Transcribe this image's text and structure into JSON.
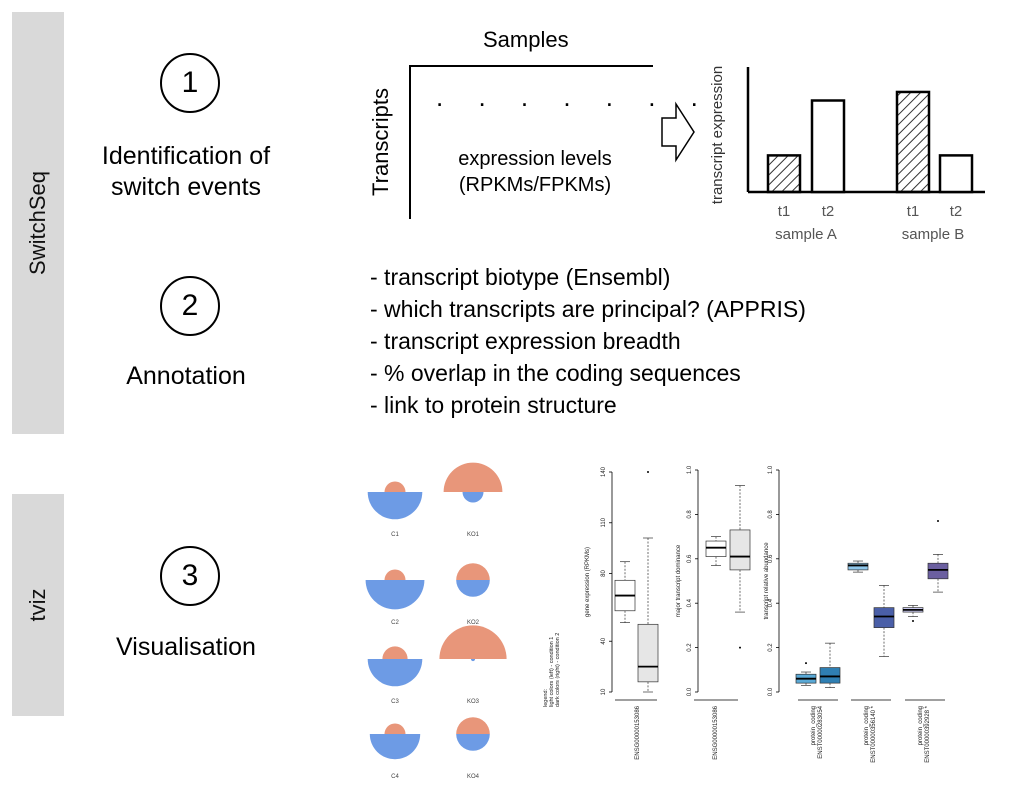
{
  "sidebar": {
    "top_label": "SwitchSeq",
    "bottom_label": "tviz"
  },
  "steps": [
    {
      "number": "1",
      "title_line1": "Identification of",
      "title_line2": "switch events"
    },
    {
      "number": "2",
      "title": "Annotation"
    },
    {
      "number": "3",
      "title": "Visualisation"
    }
  ],
  "matrix": {
    "col_label": "Samples",
    "row_label": "Transcripts",
    "dots": ". . . . . . . ",
    "body_line1": "expression levels",
    "body_line2": "(RPKMs/FPKMs)"
  },
  "annotation_items": [
    "- transcript biotype (Ensembl)",
    "- which transcripts are principal? (APPRIS)",
    "- transcript expression breadth",
    "- % overlap in the coding sequences",
    "- link to protein structure"
  ],
  "colors": {
    "sidebar": "#d9d9d9",
    "circle_orange": "#e8967a",
    "circle_blue": "#6d9be5",
    "box_light_blue": "#5aa9d6",
    "box_dark_blue": "#4a5fa8",
    "box_purple": "#6b5fa0"
  },
  "chart_data": [
    {
      "type": "bar",
      "ylabel": "transcript expression",
      "categories": [
        "t1",
        "t2",
        "t1",
        "t2"
      ],
      "groups": [
        "sample A",
        "sample B"
      ],
      "series": [
        {
          "values": [
            0.3,
            0.75,
            0.82,
            0.3
          ]
        }
      ],
      "hatched": [
        true,
        false,
        true,
        false
      ]
    },
    {
      "type": "semicircles",
      "panels": [
        {
          "label": "C1",
          "top": 0.25,
          "bottom": 0.65
        },
        {
          "label": "KO1",
          "top": 0.7,
          "bottom": 0.25
        },
        {
          "label": "C2",
          "top": 0.25,
          "bottom": 0.7
        },
        {
          "label": "KO2",
          "top": 0.4,
          "bottom": 0.4
        },
        {
          "label": "C3",
          "top": 0.3,
          "bottom": 0.65
        },
        {
          "label": "KO3",
          "top": 0.8,
          "bottom": 0.05
        },
        {
          "label": "C4",
          "top": 0.25,
          "bottom": 0.6
        },
        {
          "label": "KO4",
          "top": 0.4,
          "bottom": 0.4
        }
      ]
    },
    {
      "type": "boxplot",
      "ylabel": "gene expression (RPKMs)",
      "yticks": [
        "10",
        "40",
        "80",
        "110",
        "140"
      ],
      "ylim": [
        10,
        140
      ],
      "xlabel": "ENSG00000153086",
      "legend_lines": [
        "legend:",
        "light colors (left) - condition 1",
        "dark colors (right) - condition 2"
      ],
      "boxes": [
        {
          "fill": "#ffffff",
          "min": 51,
          "q1": 58,
          "median": 67,
          "q3": 76,
          "max": 87
        },
        {
          "fill": "#e6e6e6",
          "min": 10,
          "q1": 16,
          "median": 25,
          "q3": 50,
          "max": 101,
          "outliers": [
            140
          ]
        }
      ]
    },
    {
      "type": "boxplot",
      "ylabel": "major transcript dominance",
      "yticks": [
        "0.0",
        "0.2",
        "0.4",
        "0.6",
        "0.8",
        "1.0"
      ],
      "ylim": [
        0,
        1
      ],
      "xlabel": "ENSG00000153086",
      "boxes": [
        {
          "fill": "#ffffff",
          "min": 0.57,
          "q1": 0.61,
          "median": 0.65,
          "q3": 0.68,
          "max": 0.7
        },
        {
          "fill": "#e6e6e6",
          "min": 0.36,
          "q1": 0.55,
          "median": 0.61,
          "q3": 0.73,
          "max": 0.93,
          "outliers": [
            0.2
          ]
        }
      ]
    },
    {
      "type": "boxplot",
      "ylabel": "transcript relative abundance",
      "yticks": [
        "0.0",
        "0.2",
        "0.4",
        "0.6",
        "0.8",
        "1.0"
      ],
      "ylim": [
        0,
        1
      ],
      "xlabels": [
        {
          "line1": "protein_coding",
          "line2": "ENST00000283054"
        },
        {
          "line1": "protein_coding",
          "line2": "ENST00000356140 *"
        },
        {
          "line1": "protein_coding",
          "line2": "ENST00000392928 *"
        }
      ],
      "boxes": [
        {
          "group": 0,
          "fill": "#5aa9d6",
          "min": 0.03,
          "q1": 0.04,
          "median": 0.06,
          "q3": 0.08,
          "max": 0.09,
          "outliers": [
            0.13
          ]
        },
        {
          "group": 0,
          "fill": "#2f7fb3",
          "min": 0.02,
          "q1": 0.04,
          "median": 0.07,
          "q3": 0.11,
          "max": 0.22
        },
        {
          "group": 1,
          "fill": "#8ec6ea",
          "min": 0.54,
          "q1": 0.55,
          "median": 0.57,
          "q3": 0.58,
          "max": 0.59
        },
        {
          "group": 1,
          "fill": "#4a5fa8",
          "min": 0.16,
          "q1": 0.29,
          "median": 0.34,
          "q3": 0.38,
          "max": 0.48
        },
        {
          "group": 2,
          "fill": "#c8c8f0",
          "min": 0.34,
          "q1": 0.36,
          "median": 0.37,
          "q3": 0.38,
          "max": 0.39,
          "outliers": [
            0.32
          ]
        },
        {
          "group": 2,
          "fill": "#6b5fa0",
          "min": 0.45,
          "q1": 0.51,
          "median": 0.55,
          "q3": 0.58,
          "max": 0.62,
          "outliers": [
            0.77
          ]
        }
      ]
    }
  ]
}
